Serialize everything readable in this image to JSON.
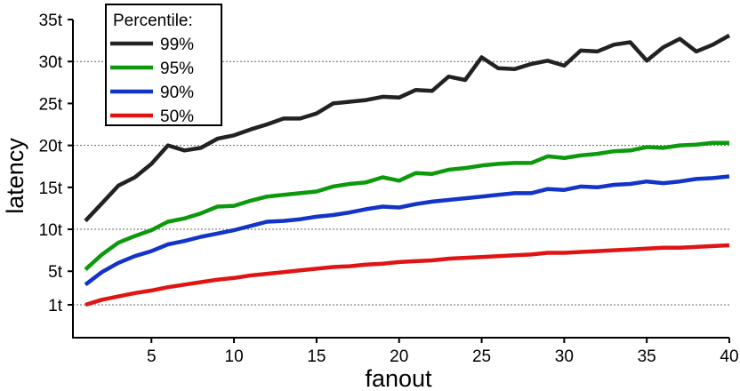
{
  "chart_data": {
    "type": "line",
    "xlabel": "fanout",
    "ylabel": "latency",
    "xlim": [
      1,
      40
    ],
    "ylim": [
      0,
      35
    ],
    "x_ticks": [
      {
        "value": 5,
        "label": "5"
      },
      {
        "value": 10,
        "label": "10"
      },
      {
        "value": 15,
        "label": "15"
      },
      {
        "value": 20,
        "label": "20"
      },
      {
        "value": 25,
        "label": "25"
      },
      {
        "value": 30,
        "label": "30"
      },
      {
        "value": 35,
        "label": "35"
      },
      {
        "value": 40,
        "label": "40"
      }
    ],
    "y_ticks": [
      {
        "value": 1,
        "label": "1t"
      },
      {
        "value": 5,
        "label": "5t"
      },
      {
        "value": 10,
        "label": "10t"
      },
      {
        "value": 15,
        "label": "15t"
      },
      {
        "value": 20,
        "label": "20t"
      },
      {
        "value": 25,
        "label": "25t"
      },
      {
        "value": 30,
        "label": "30t"
      },
      {
        "value": 35,
        "label": "35t"
      }
    ],
    "gridlines_y": [
      1,
      10,
      20,
      30
    ],
    "grid": "horizontal dotted",
    "legend": {
      "title": "Percentile:",
      "position": "top-left"
    },
    "x": [
      1,
      2,
      3,
      4,
      5,
      6,
      7,
      8,
      9,
      10,
      11,
      12,
      13,
      14,
      15,
      16,
      17,
      18,
      19,
      20,
      21,
      22,
      23,
      24,
      25,
      26,
      27,
      28,
      29,
      30,
      31,
      32,
      33,
      34,
      35,
      36,
      37,
      38,
      39,
      40
    ],
    "series": [
      {
        "name": "99%",
        "color": "#222222",
        "values": [
          11.0,
          13.1,
          15.2,
          16.2,
          17.8,
          20.0,
          19.4,
          19.7,
          20.8,
          21.2,
          21.9,
          22.5,
          23.2,
          23.2,
          23.8,
          25.0,
          25.2,
          25.4,
          25.8,
          25.7,
          26.6,
          26.5,
          28.2,
          27.8,
          30.5,
          29.2,
          29.1,
          29.7,
          30.1,
          29.5,
          31.3,
          31.2,
          32.0,
          32.3,
          30.1,
          31.7,
          32.7,
          31.2,
          32.0,
          33.1
        ]
      },
      {
        "name": "95%",
        "color": "#0c9a0c",
        "values": [
          5.2,
          7.0,
          8.4,
          9.2,
          9.9,
          10.9,
          11.3,
          11.9,
          12.7,
          12.8,
          13.4,
          13.9,
          14.1,
          14.3,
          14.5,
          15.1,
          15.4,
          15.6,
          16.2,
          15.8,
          16.7,
          16.6,
          17.1,
          17.3,
          17.6,
          17.8,
          17.9,
          17.9,
          18.7,
          18.5,
          18.8,
          19.0,
          19.3,
          19.4,
          19.8,
          19.7,
          20.0,
          20.1,
          20.3,
          20.3
        ]
      },
      {
        "name": "90%",
        "color": "#1235c8",
        "values": [
          3.4,
          4.9,
          6.0,
          6.8,
          7.4,
          8.2,
          8.6,
          9.1,
          9.5,
          9.9,
          10.4,
          10.9,
          11.0,
          11.2,
          11.5,
          11.7,
          12.0,
          12.4,
          12.7,
          12.6,
          13.0,
          13.3,
          13.5,
          13.7,
          13.9,
          14.1,
          14.3,
          14.3,
          14.8,
          14.7,
          15.1,
          15.0,
          15.3,
          15.4,
          15.7,
          15.5,
          15.7,
          16.0,
          16.1,
          16.3
        ]
      },
      {
        "name": "50%",
        "color": "#e01414",
        "values": [
          1.0,
          1.6,
          2.0,
          2.4,
          2.7,
          3.1,
          3.4,
          3.7,
          4.0,
          4.2,
          4.5,
          4.7,
          4.9,
          5.1,
          5.3,
          5.5,
          5.6,
          5.8,
          5.9,
          6.1,
          6.2,
          6.3,
          6.5,
          6.6,
          6.7,
          6.8,
          6.9,
          7.0,
          7.2,
          7.2,
          7.3,
          7.4,
          7.5,
          7.6,
          7.7,
          7.8,
          7.8,
          7.9,
          8.0,
          8.1
        ]
      }
    ]
  }
}
